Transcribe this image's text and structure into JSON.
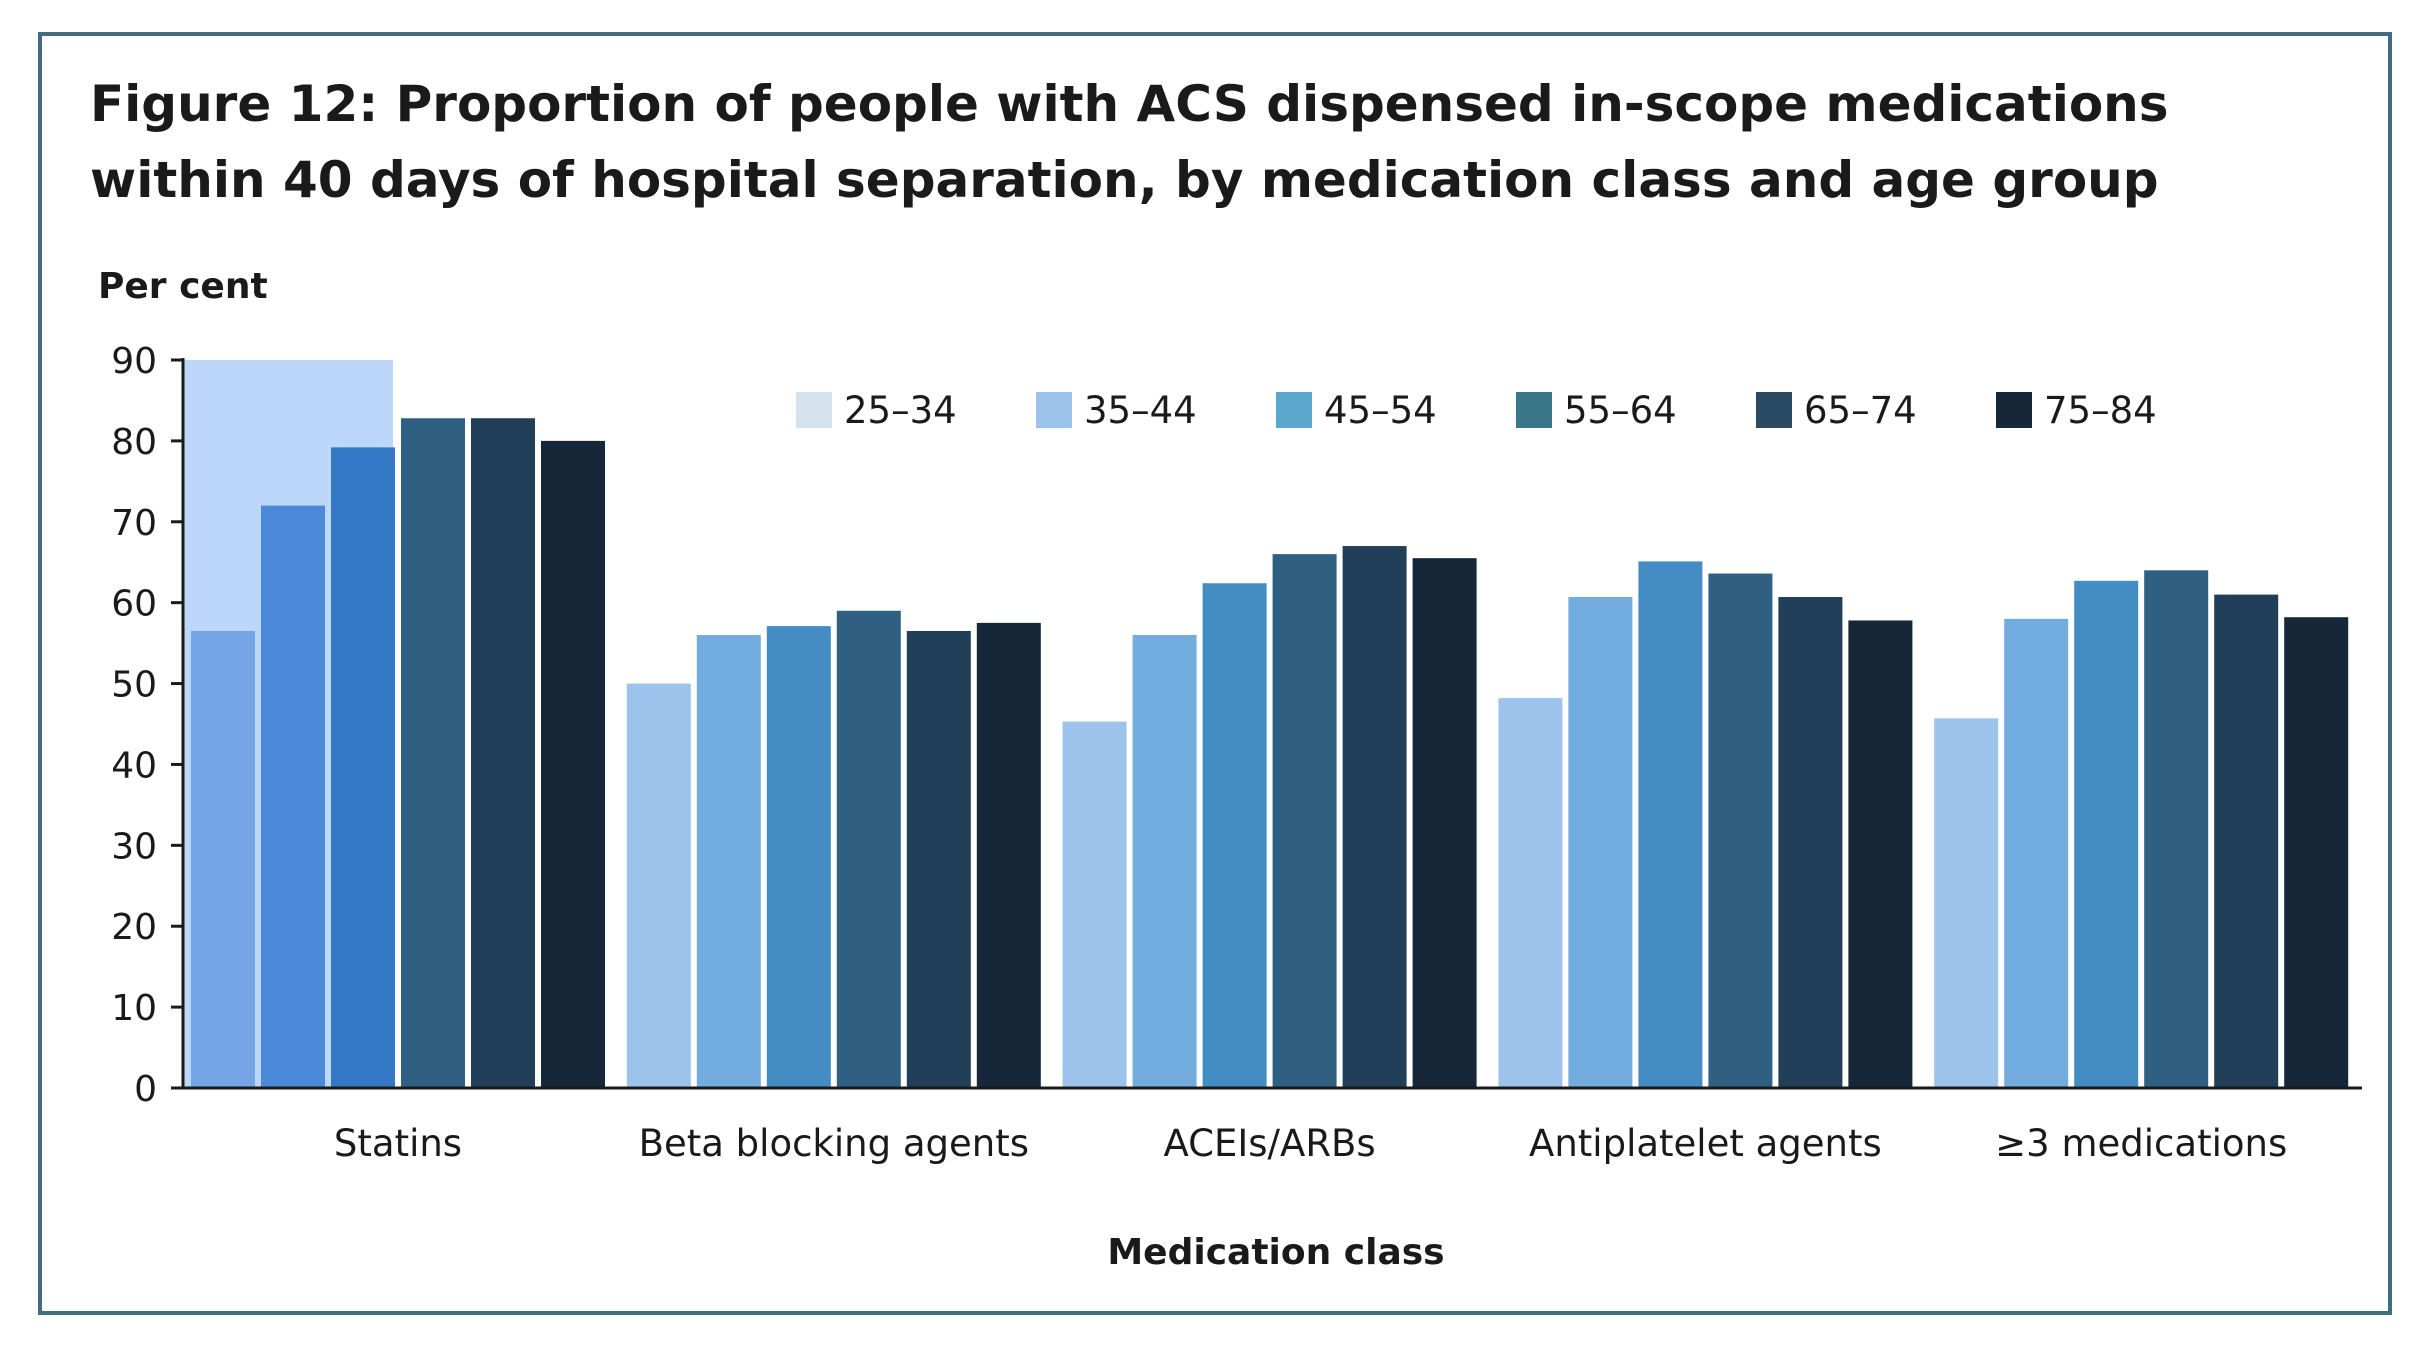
{
  "chart_data": {
    "type": "bar",
    "title": "Figure 12: Proportion of people with ACS dispensed in-scope medications within 40 days of hospital separation, by medication class and age group",
    "ylabel": "Per cent",
    "xlabel": "Medication class",
    "ylim": [
      0,
      90
    ],
    "yticks": [
      0,
      10,
      20,
      30,
      40,
      50,
      60,
      70,
      80,
      90
    ],
    "categories": [
      "Statins",
      "Beta blocking agents",
      "ACEIs/ARBs",
      "Antiplatelet agents",
      "≥3 medications"
    ],
    "series": [
      {
        "name": "25–34",
        "values": [
          56.5,
          50,
          45.3,
          48.2,
          45.7
        ]
      },
      {
        "name": "35–44",
        "values": [
          72,
          56,
          56,
          60.7,
          58
        ]
      },
      {
        "name": "45–54",
        "values": [
          79.2,
          57.1,
          62.4,
          65.1,
          62.7
        ]
      },
      {
        "name": "55–64",
        "values": [
          82.8,
          59,
          66,
          63.6,
          64
        ]
      },
      {
        "name": "65–74",
        "values": [
          82.8,
          56.5,
          67,
          60.7,
          61
        ]
      },
      {
        "name": "75–84",
        "values": [
          80,
          57.5,
          65.5,
          57.8,
          58.2
        ]
      }
    ],
    "legend_position": "top-right",
    "grid": false
  },
  "colors": {
    "series": [
      "#9cc3eb",
      "#73acdf",
      "#438cc4",
      "#2f6082",
      "#213f58",
      "#152738"
    ],
    "legend": [
      "#d4e3ee",
      "#9cc3eb",
      "#5aa8cc",
      "#3b7688",
      "#2a4a63",
      "#152738"
    ],
    "statins": [
      "#72a4e6",
      "#4a8ad8",
      "#3378c6"
    ],
    "highlight": "#bcd7f9",
    "axis": "#1a1a1a",
    "frame": "#3e6e80"
  }
}
